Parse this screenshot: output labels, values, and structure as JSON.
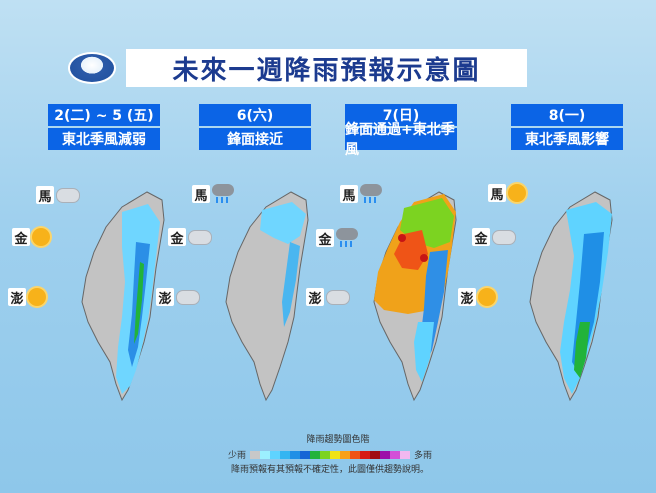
{
  "title": "未來一週降雨預報示意圖",
  "columns": [
    {
      "date": "2(二) ~ 5 (五)",
      "desc": "東北季風減弱"
    },
    {
      "date": "6(六)",
      "desc": "鋒面接近"
    },
    {
      "date": "7(日)",
      "desc": "鋒面通過+東北季風"
    },
    {
      "date": "8(一)",
      "desc": "東北季風影響"
    }
  ],
  "islands": {
    "ma": "馬",
    "jin": "金",
    "peng": "澎"
  },
  "legend": {
    "title": "降雨趨勢圖色階",
    "low": "少雨",
    "high": "多雨",
    "colors": [
      "#c8c8c8",
      "#9cf0ff",
      "#5fd3ff",
      "#34b5f2",
      "#1f8fe6",
      "#1565d6",
      "#22b33a",
      "#7cd321",
      "#f0e316",
      "#f7a018",
      "#ef5417",
      "#d71b17",
      "#a00c14",
      "#9c0fa9",
      "#d34fd8",
      "#f2b8f0"
    ]
  },
  "note": "降雨預報有其預報不確定性，此圖僅供趨勢說明。",
  "weather": [
    [
      "cloudy",
      "sunny",
      "sunny"
    ],
    [
      "rainy",
      "cloudy",
      "cloudy"
    ],
    [
      "rainy",
      "rainy",
      "cloudy"
    ],
    [
      "sunny",
      "cloudy",
      "sunny"
    ]
  ]
}
